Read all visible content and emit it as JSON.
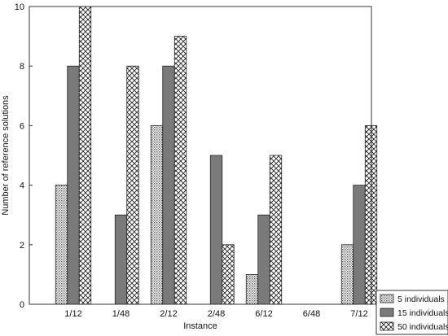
{
  "chart_data": {
    "type": "bar",
    "xlabel": "Instance",
    "ylabel": "Number of reference solutions",
    "categories": [
      "1/12",
      "1/48",
      "2/12",
      "2/48",
      "6/12",
      "6/48",
      "7/12"
    ],
    "ylim": [
      0,
      10
    ],
    "yticks": [
      0,
      2,
      4,
      6,
      8,
      10
    ],
    "grid": false,
    "legend_position": "bottom-right",
    "series": [
      {
        "name": "5 individuals",
        "pattern": "dots",
        "values": [
          4,
          0,
          6,
          0,
          1,
          0,
          2
        ]
      },
      {
        "name": "15 individuals",
        "pattern": "solid-gray",
        "values": [
          8,
          3,
          8,
          5,
          3,
          0,
          4
        ]
      },
      {
        "name": "50 individuals",
        "pattern": "crosshatch",
        "values": [
          10,
          8,
          9,
          2,
          5,
          0,
          6
        ]
      }
    ],
    "colors": {
      "solid": "#7a7a7a",
      "stroke": "#222222",
      "dot": "#555555"
    }
  }
}
